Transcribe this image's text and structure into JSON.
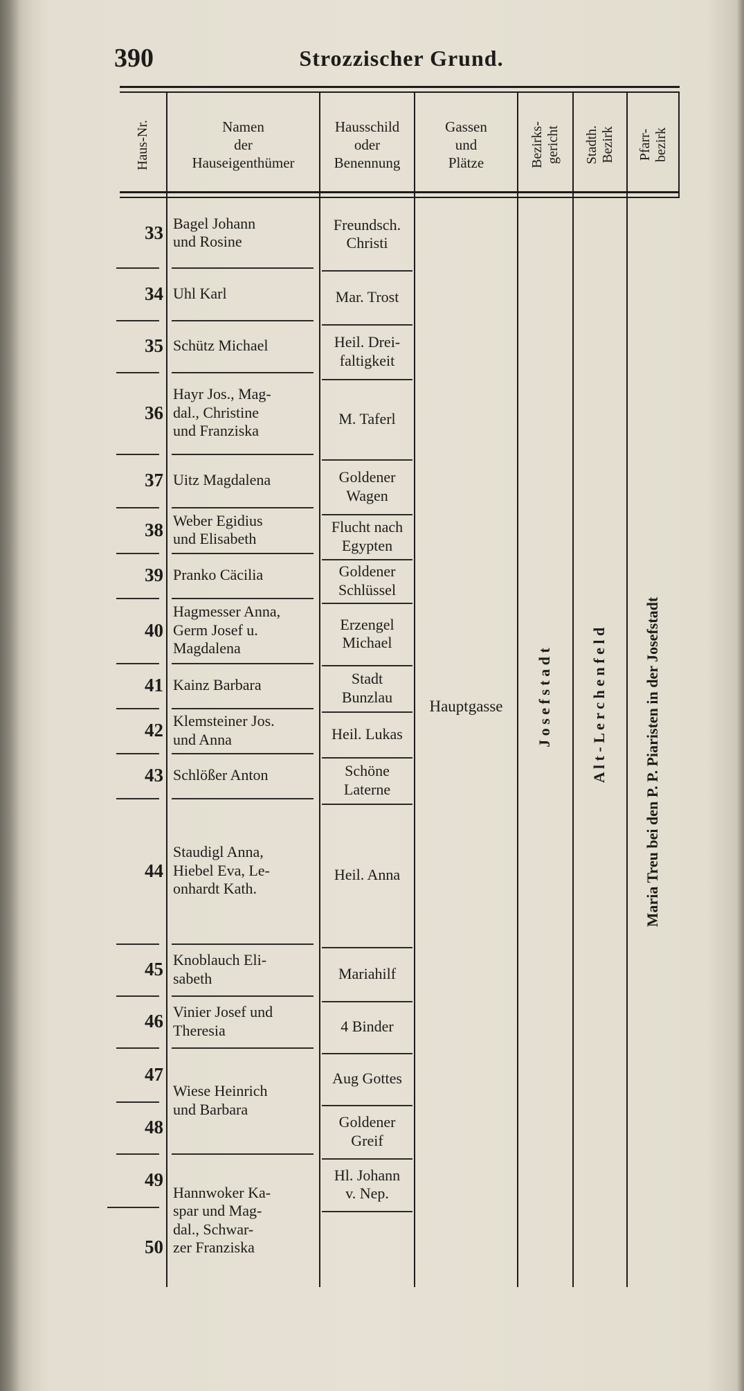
{
  "page_number": "390",
  "running_title": "Strozzischer Grund.",
  "headers": {
    "haus_nr": "Haus-Nr.",
    "namen": "Namen\nder\nHauseigenthümer",
    "hausschild": "Hausschild\noder\nBenennung",
    "gassen": "Gassen\nund\nPlätze",
    "bezirksgericht": "Bezirks-\ngericht",
    "stadth_bezirk": "Stadth.\nBezirk",
    "pfarrbezirk": "Pfarr-\nbezirk"
  },
  "house_numbers": [
    "33",
    "34",
    "35",
    "36",
    "37",
    "38",
    "39",
    "40",
    "41",
    "42",
    "43",
    "44",
    "45",
    "46",
    "47",
    "48",
    "49",
    "50"
  ],
  "owners": [
    "Bagel Johann\nund Rosine",
    "Uhl Karl",
    "Schütz Michael",
    "Hayr Jos., Mag-\ndal., Christine\nund Franziska",
    "Uitz Magdalena",
    "Weber Egidius\nund Elisabeth",
    "Pranko Cäcilia",
    "Hagmesser Anna,\nGerm Josef u.\nMagdalena",
    "Kainz Barbara",
    "Klemsteiner Jos.\nund Anna",
    "Schlößer Anton",
    "Staudigl Anna,\nHiebel Eva, Le-\nonhardt Kath.",
    "Knoblauch Eli-\nsabeth",
    "Vinier Josef und\nTheresia",
    "Wiese Heinrich\nund Barbara",
    "Hannwoker Ka-\nspar und Mag-\ndal., Schwar-\nzer Franziska"
  ],
  "house_signs": [
    "Freundsch.\nChristi",
    "Mar. Trost",
    "Heil. Drei-\nfaltigkeit",
    "M. Taferl",
    "Goldener\nWagen",
    "Flucht nach\nEgypten",
    "Goldener\nSchlüssel",
    "Erzengel\nMichael",
    "Stadt\nBunzlau",
    "Heil. Lukas",
    "Schöne\nLaterne",
    "Heil. Anna",
    "Mariahilf",
    "4 Binder",
    "Aug Gottes",
    "Goldener\nGreif",
    "Hl. Johann\nv. Nep.",
    ""
  ],
  "street": "Hauptgasse",
  "district_court": "J o s e f s t a d t",
  "city_district": "A l t - L e r c h e n f e l d",
  "parish": "Maria Treu bei den P. P. Piaristen in der Josefstadt"
}
